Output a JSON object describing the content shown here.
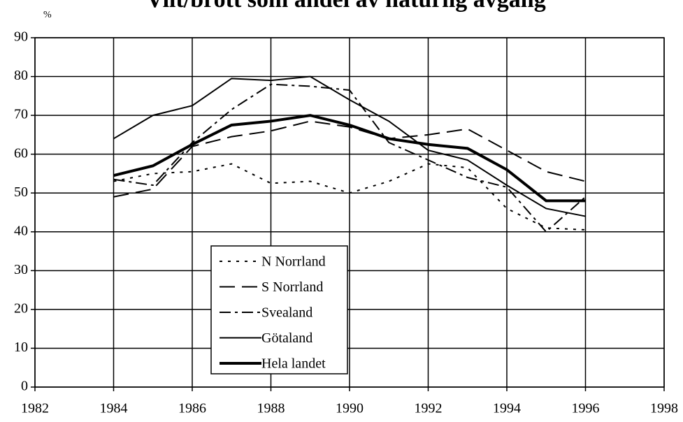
{
  "chart_data": {
    "type": "line",
    "title": "Vilt/brott som andel av naturlig avgång",
    "y_label": "%",
    "x": [
      1984,
      1985,
      1986,
      1987,
      1988,
      1989,
      1990,
      1991,
      1992,
      1993,
      1994,
      1995,
      1996
    ],
    "series": [
      {
        "name": "N Norrland",
        "color": "#000000",
        "dash": "4 8",
        "width": 2,
        "values": [
          53,
          55,
          55.5,
          57.5,
          52.5,
          53,
          50,
          53,
          57.5,
          56.5,
          46,
          41,
          40.5
        ]
      },
      {
        "name": "S Norrland",
        "color": "#000000",
        "dash": "22 10",
        "width": 2,
        "values": [
          49,
          51,
          62,
          64.5,
          66,
          68.5,
          67,
          64,
          65,
          66.5,
          61,
          55.5,
          53
        ]
      },
      {
        "name": "Svealand",
        "color": "#000000",
        "dash": "16 6 4 6",
        "width": 2,
        "values": [
          53.5,
          52,
          63,
          71.5,
          78,
          77.5,
          76.5,
          63,
          58.5,
          54,
          51.5,
          40,
          49
        ]
      },
      {
        "name": "Götaland",
        "color": "#000000",
        "dash": "none",
        "width": 2,
        "values": [
          64,
          70,
          72.5,
          79.5,
          79,
          80,
          74,
          68.5,
          61,
          58.5,
          52,
          46,
          44
        ]
      },
      {
        "name": "Hela landet",
        "color": "#000000",
        "dash": "none",
        "width": 4,
        "values": [
          54.5,
          57,
          62.5,
          67.5,
          68.5,
          70,
          67.5,
          64,
          62.5,
          61.5,
          56,
          48,
          48
        ]
      }
    ],
    "xlim": [
      1982,
      1998
    ],
    "xticks": [
      1982,
      1984,
      1986,
      1988,
      1990,
      1992,
      1994,
      1996,
      1998
    ],
    "ylim": [
      0,
      90
    ],
    "yticks": [
      0,
      10,
      20,
      30,
      40,
      50,
      60,
      70,
      80,
      90
    ],
    "grid": true
  }
}
